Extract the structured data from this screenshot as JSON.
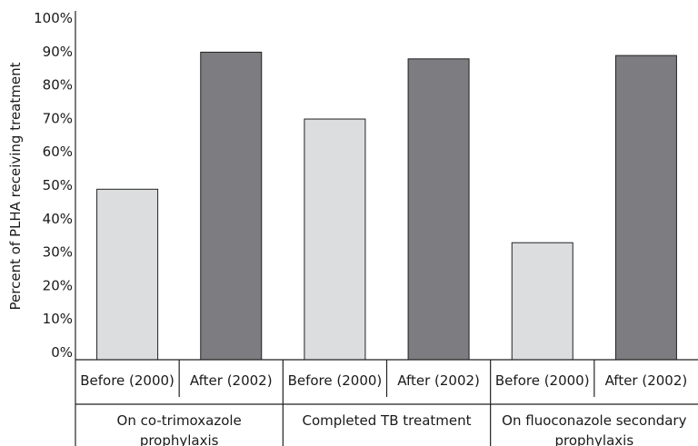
{
  "chart_data": {
    "type": "bar",
    "ylabel": "Percent of PLHA receiving treatment",
    "ylim": [
      0,
      100
    ],
    "yticks": [
      "0%",
      "10%",
      "20%",
      "30%",
      "40%",
      "50%",
      "60%",
      "70%",
      "80%",
      "90%",
      "100%"
    ],
    "grid": false,
    "colors": {
      "before": "#dcddde",
      "after": "#7d7c80"
    },
    "groups": [
      {
        "label": "On co-trimoxazole prophylaxis",
        "label_lines": [
          "On co-trimoxazole",
          "prophylaxis"
        ],
        "bars": [
          {
            "label": "Before (2000)",
            "value": 51,
            "series": "before"
          },
          {
            "label": "After (2002)",
            "value": 92,
            "series": "after"
          }
        ]
      },
      {
        "label": "Completed TB treatment",
        "label_lines": [
          "Completed TB treatment"
        ],
        "bars": [
          {
            "label": "Before (2000)",
            "value": 72,
            "series": "before"
          },
          {
            "label": "After (2002)",
            "value": 90,
            "series": "after"
          }
        ]
      },
      {
        "label": "On fluoconazole secondary prophylaxis",
        "label_lines": [
          "On fluoconazole secondary",
          "prophylaxis"
        ],
        "bars": [
          {
            "label": "Before (2000)",
            "value": 35,
            "series": "before"
          },
          {
            "label": "After (2002)",
            "value": 91,
            "series": "after"
          }
        ]
      }
    ]
  }
}
